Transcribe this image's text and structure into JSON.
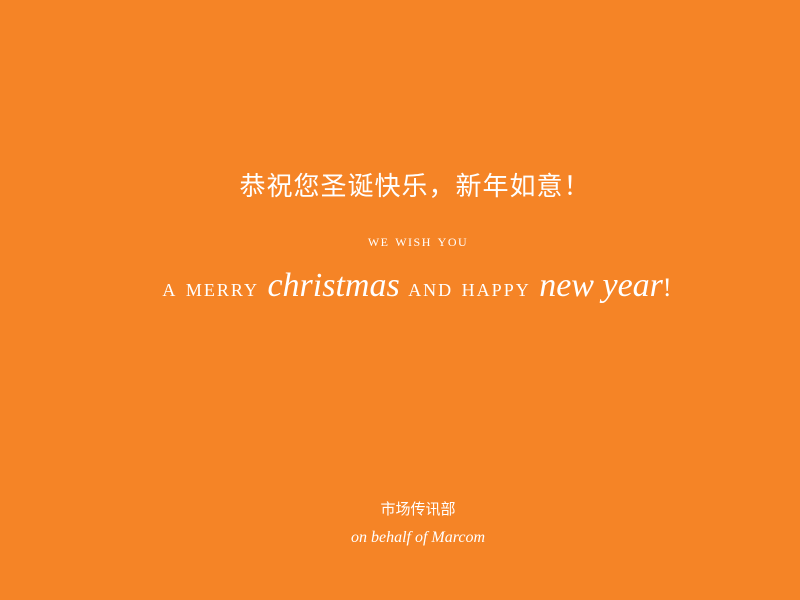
{
  "card": {
    "background_color": "#f58426",
    "text_color": "#ffffff",
    "greeting_cn": "恭祝您圣诞快乐，新年如意！",
    "wish_line": "we wish you",
    "merry": {
      "part1": "a merry ",
      "part2": "christmas",
      "part3": " and happy ",
      "part4": "new year",
      "part5": "!"
    },
    "department_cn": "市场传讯部",
    "department_en": "on behalf of Marcom"
  }
}
